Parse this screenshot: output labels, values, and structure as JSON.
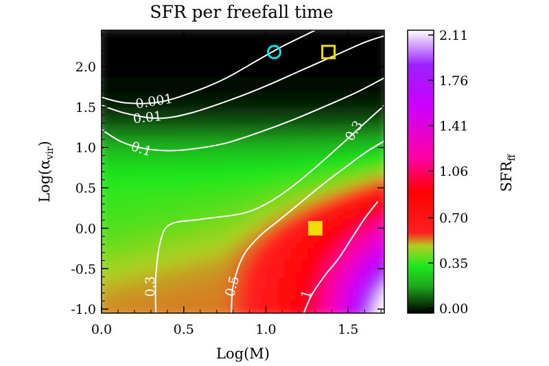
{
  "chart_data": {
    "type": "heatmap",
    "title": "SFR per freefall time",
    "xlabel": "Log(M)",
    "ylabel": {
      "base": "Log(α",
      "sub": "vir",
      "close": ")"
    },
    "xlim": [
      0.0,
      1.72
    ],
    "ylim": [
      -1.05,
      2.45
    ],
    "x_ticks": [
      "0.0",
      "0.5",
      "1.0",
      "1.5"
    ],
    "y_ticks": [
      "-1.0",
      "-0.5",
      "0.0",
      "0.5",
      "1.0",
      "1.5",
      "2.0"
    ],
    "colorbar": {
      "label": {
        "base": "SFR",
        "sub": "ff"
      },
      "range": [
        0.0,
        2.11
      ],
      "ticks": [
        "0.00",
        "0.35",
        "0.70",
        "1.06",
        "1.41",
        "1.76",
        "2.11"
      ],
      "colors": [
        {
          "v": 0.0,
          "c": "#000000"
        },
        {
          "v": 0.2,
          "c": "#1ea81e"
        },
        {
          "v": 0.35,
          "c": "#1ee81e"
        },
        {
          "v": 0.5,
          "c": "#b0d020"
        },
        {
          "v": 0.6,
          "c": "#ff2020"
        },
        {
          "v": 0.9,
          "c": "#ff0000"
        },
        {
          "v": 1.15,
          "c": "#ff00a0"
        },
        {
          "v": 1.55,
          "c": "#cc00ff"
        },
        {
          "v": 1.85,
          "c": "#9a20ff"
        },
        {
          "v": 2.11,
          "c": "#ffffff"
        }
      ]
    },
    "contours": [
      {
        "label": "0.001",
        "points": [
          [
            0.0,
            1.62
          ],
          [
            0.15,
            1.55
          ],
          [
            0.35,
            1.56
          ],
          [
            0.55,
            1.68
          ],
          [
            0.75,
            1.85
          ],
          [
            0.95,
            2.08
          ],
          [
            1.1,
            2.25
          ],
          [
            1.25,
            2.4
          ],
          [
            1.3,
            2.45
          ]
        ]
      },
      {
        "label": "0.01",
        "points": [
          [
            0.0,
            1.52
          ],
          [
            0.15,
            1.42
          ],
          [
            0.35,
            1.36
          ],
          [
            0.55,
            1.43
          ],
          [
            0.8,
            1.6
          ],
          [
            1.0,
            1.76
          ],
          [
            1.2,
            1.94
          ],
          [
            1.4,
            2.12
          ],
          [
            1.6,
            2.3
          ],
          [
            1.72,
            2.38
          ]
        ]
      },
      {
        "label": "0.1",
        "points": [
          [
            0.0,
            1.22
          ],
          [
            0.12,
            1.07
          ],
          [
            0.25,
            0.99
          ],
          [
            0.4,
            0.96
          ],
          [
            0.55,
            0.98
          ],
          [
            0.75,
            1.05
          ],
          [
            0.95,
            1.18
          ],
          [
            1.15,
            1.33
          ],
          [
            1.35,
            1.5
          ],
          [
            1.55,
            1.68
          ],
          [
            1.72,
            1.86
          ]
        ]
      },
      {
        "label": "0.3",
        "points": [
          [
            0.33,
            -1.05
          ],
          [
            0.33,
            -0.6
          ],
          [
            0.36,
            -0.15
          ],
          [
            0.42,
            0.05
          ],
          [
            0.6,
            0.11
          ],
          [
            0.85,
            0.18
          ],
          [
            1.0,
            0.3
          ],
          [
            1.15,
            0.5
          ],
          [
            1.3,
            0.75
          ],
          [
            1.45,
            1.02
          ],
          [
            1.6,
            1.3
          ],
          [
            1.72,
            1.52
          ]
        ]
      },
      {
        "label": "0.5",
        "points": [
          [
            0.79,
            -1.05
          ],
          [
            0.8,
            -0.72
          ],
          [
            0.86,
            -0.35
          ],
          [
            0.96,
            -0.1
          ],
          [
            1.08,
            0.1
          ],
          [
            1.2,
            0.3
          ],
          [
            1.35,
            0.55
          ],
          [
            1.5,
            0.78
          ],
          [
            1.6,
            0.93
          ],
          [
            1.72,
            1.08
          ]
        ]
      },
      {
        "label": "1",
        "points": [
          [
            1.23,
            -1.05
          ],
          [
            1.28,
            -0.82
          ],
          [
            1.36,
            -0.58
          ],
          [
            1.44,
            -0.38
          ],
          [
            1.52,
            -0.13
          ],
          [
            1.6,
            0.12
          ],
          [
            1.68,
            0.33
          ]
        ]
      }
    ],
    "markers": [
      {
        "shape": "circle",
        "fill": "none",
        "stroke": "#00e5e5",
        "x": 1.05,
        "y": 2.18
      },
      {
        "shape": "square",
        "fill": "none",
        "stroke": "#f0dc00",
        "x": 1.38,
        "y": 2.18
      },
      {
        "shape": "square",
        "fill": "#f0dc00",
        "stroke": "#f0dc00",
        "x": 1.3,
        "y": 0.0
      }
    ]
  }
}
